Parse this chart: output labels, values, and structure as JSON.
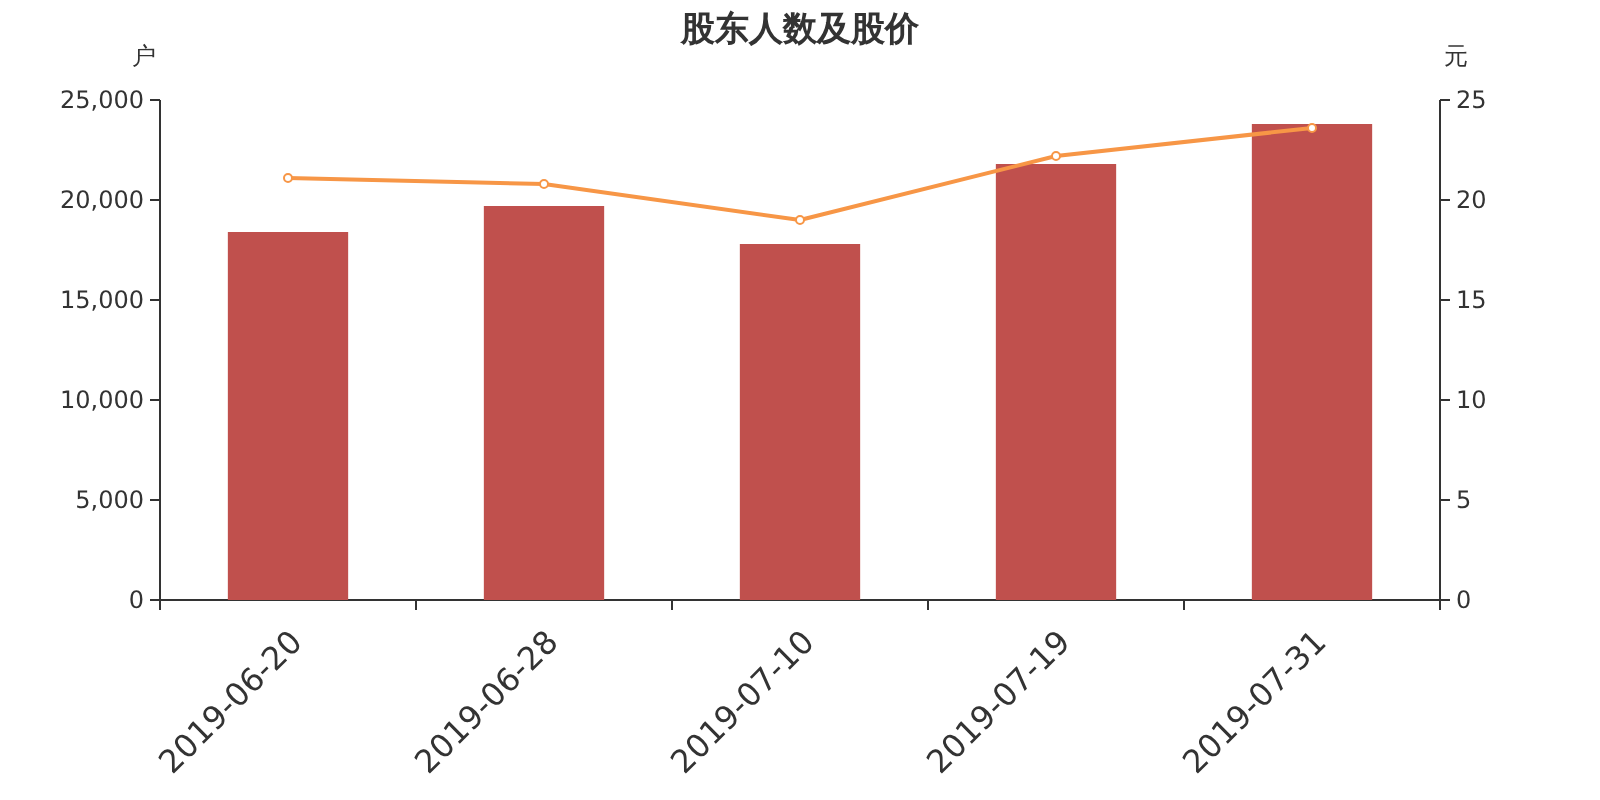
{
  "chart_data": {
    "type": "bar",
    "title": "股东人数及股价",
    "ylabel": "户",
    "y2label": "元",
    "categories": [
      "2019-06-20",
      "2019-06-28",
      "2019-07-10",
      "2019-07-19",
      "2019-07-31"
    ],
    "series": [
      {
        "color": "#c0504d",
        "values": [
          18400,
          19700,
          17800,
          21800,
          23800
        ]
      },
      {
        "type": "line",
        "axis": "y2",
        "color": "#f79646",
        "marker": "circle",
        "values": [
          21.1,
          20.8,
          19.0,
          22.2,
          23.6
        ]
      }
    ],
    "ylim": [
      0,
      25000
    ],
    "yticks": [
      {
        "value": 0,
        "label": "0"
      },
      {
        "value": 5000,
        "label": "5,000"
      },
      {
        "value": 10000,
        "label": "10,000"
      },
      {
        "value": 15000,
        "label": "15,000"
      },
      {
        "value": 20000,
        "label": "20,000"
      },
      {
        "value": 25000,
        "label": "25,000"
      }
    ],
    "y2lim": [
      0,
      25
    ],
    "y2ticks": [
      0,
      5,
      10,
      15,
      20,
      25
    ],
    "grid": false
  }
}
